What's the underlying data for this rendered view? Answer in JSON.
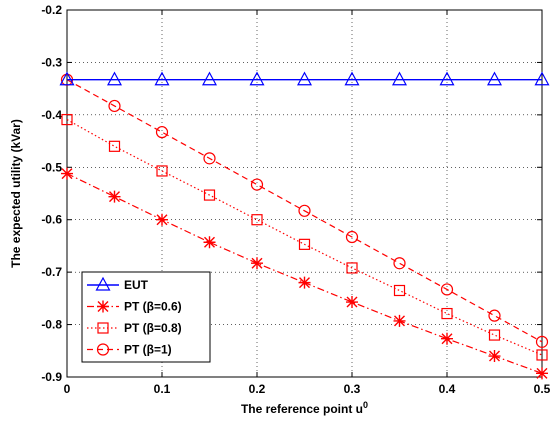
{
  "chart_data": {
    "type": "line",
    "title": "",
    "xlabel": "The reference point u",
    "xlabel_superscript": "0",
    "ylabel": "The expected utility (kVar)",
    "xlim": [
      0,
      0.5
    ],
    "ylim": [
      -0.9,
      -0.2
    ],
    "x_ticks": [
      "0",
      "0.1",
      "0.2",
      "0.3",
      "0.4",
      "0.5"
    ],
    "y_ticks": [
      "-0.9",
      "-0.8",
      "-0.7",
      "-0.6",
      "-0.5",
      "-0.4",
      "-0.3",
      "-0.2"
    ],
    "x_tick_values": [
      0,
      0.1,
      0.2,
      0.3,
      0.4,
      0.5
    ],
    "y_tick_values": [
      -0.9,
      -0.8,
      -0.7,
      -0.6,
      -0.5,
      -0.4,
      -0.3,
      -0.2
    ],
    "grid": true,
    "legend_position": "bottom-left",
    "x": [
      0,
      0.05,
      0.1,
      0.15,
      0.2,
      0.25,
      0.3,
      0.35,
      0.4,
      0.45,
      0.5
    ],
    "series": [
      {
        "name": "EUT",
        "color": "#0000ff",
        "line_style": "solid",
        "marker": "triangle",
        "values": [
          -0.333,
          -0.333,
          -0.333,
          -0.333,
          -0.333,
          -0.333,
          -0.333,
          -0.333,
          -0.333,
          -0.333,
          -0.333
        ]
      },
      {
        "name": "PT (β=0.6)",
        "color": "#ff0000",
        "line_style": "dashdot",
        "marker": "star",
        "values": [
          -0.512,
          -0.556,
          -0.6,
          -0.643,
          -0.683,
          -0.72,
          -0.757,
          -0.793,
          -0.827,
          -0.86,
          -0.893
        ]
      },
      {
        "name": "PT (β=0.8)",
        "color": "#ff0000",
        "line_style": "dotted",
        "marker": "square",
        "values": [
          -0.409,
          -0.46,
          -0.507,
          -0.553,
          -0.6,
          -0.647,
          -0.692,
          -0.735,
          -0.779,
          -0.82,
          -0.858
        ]
      },
      {
        "name": "PT (β=1)",
        "color": "#ff0000",
        "line_style": "dashed",
        "marker": "circle",
        "values": [
          -0.333,
          -0.383,
          -0.433,
          -0.483,
          -0.533,
          -0.583,
          -0.633,
          -0.683,
          -0.733,
          -0.783,
          -0.833
        ]
      }
    ]
  }
}
